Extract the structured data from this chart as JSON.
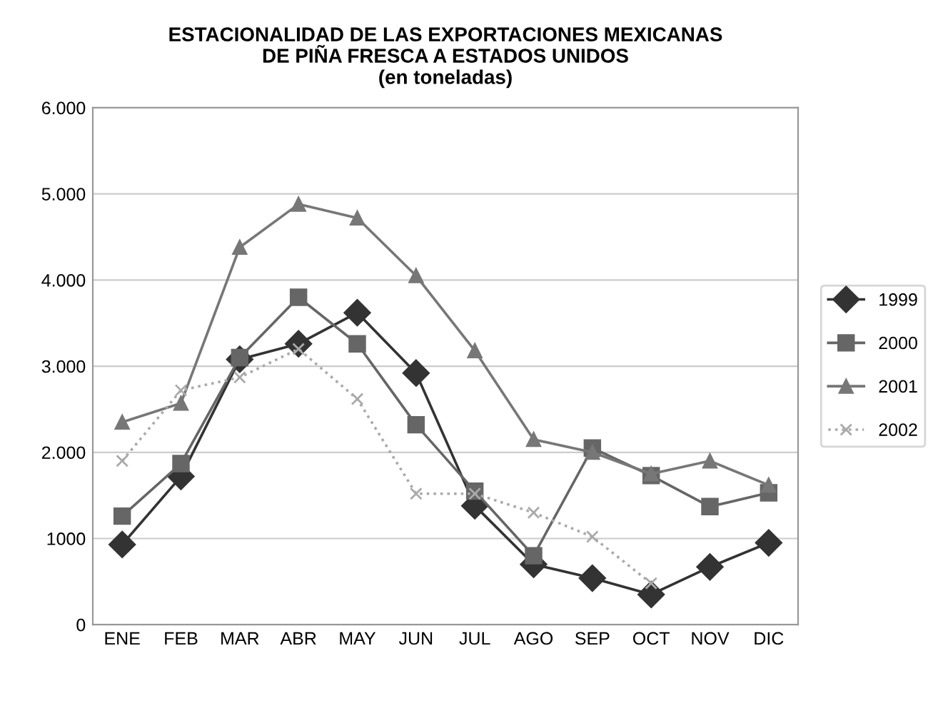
{
  "chart_data": {
    "type": "line",
    "title": "ESTACIONALIDAD DE LAS EXPORTACIONES MEXICANAS\nDE PIÑA FRESCA A ESTADOS UNIDOS\n(en toneladas)",
    "categories": [
      "ENE",
      "FEB",
      "MAR",
      "ABR",
      "MAY",
      "JUN",
      "JUL",
      "AGO",
      "SEP",
      "OCT",
      "NOV",
      "DIC"
    ],
    "series": [
      {
        "name": "1999",
        "color": "#333333",
        "marker": "diamond",
        "line_style": "solid",
        "values": [
          930,
          1720,
          3080,
          3260,
          3620,
          2920,
          1380,
          700,
          540,
          350,
          670,
          950
        ]
      },
      {
        "name": "2000",
        "color": "#666666",
        "marker": "square",
        "line_style": "solid",
        "values": [
          1260,
          1870,
          3100,
          3800,
          3260,
          2320,
          1550,
          800,
          2050,
          1730,
          1370,
          1530
        ]
      },
      {
        "name": "2001",
        "color": "#777777",
        "marker": "triangle",
        "line_style": "solid",
        "values": [
          2350,
          2570,
          4380,
          4880,
          4720,
          4050,
          3180,
          2150,
          2000,
          1750,
          1900,
          1620
        ]
      },
      {
        "name": "2002",
        "color": "#aaaaaa",
        "marker": "cross",
        "line_style": "dotted",
        "values": [
          1900,
          2720,
          2870,
          3200,
          2620,
          1520,
          1520,
          1300,
          1020,
          480,
          null,
          null
        ]
      }
    ],
    "ylim": [
      0,
      6000
    ],
    "yticks": [
      0,
      {
        "value": 1000,
        "label": "1000"
      },
      {
        "value": 2000,
        "label": "2.000"
      },
      {
        "value": 3000,
        "label": "3.000"
      },
      {
        "value": 4000,
        "label": "4.000"
      },
      {
        "value": 5000,
        "label": "5.000"
      },
      {
        "value": 6000,
        "label": "6.000"
      }
    ],
    "grid": "y",
    "legend": "right"
  }
}
